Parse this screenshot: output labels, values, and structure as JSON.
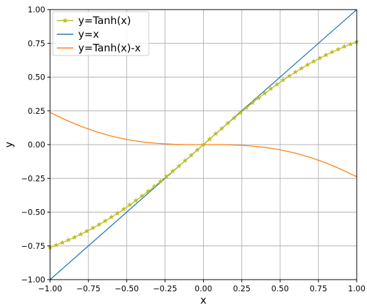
{
  "chart_data": {
    "type": "line",
    "title": "",
    "xlabel": "x",
    "ylabel": "y",
    "xlim": [
      -1.0,
      1.0
    ],
    "ylim": [
      -1.0,
      1.0
    ],
    "grid": true,
    "legend_position": "top-left",
    "xticks": [
      "−1.00",
      "−0.75",
      "−0.50",
      "−0.25",
      "0.00",
      "0.25",
      "0.50",
      "0.75",
      "1.00"
    ],
    "yticks": [
      "−1.00",
      "−0.75",
      "−0.50",
      "−0.25",
      "0.00",
      "0.25",
      "0.50",
      "0.75",
      "1.00"
    ],
    "xtick_values": [
      -1.0,
      -0.75,
      -0.5,
      -0.25,
      0.0,
      0.25,
      0.5,
      0.75,
      1.0
    ],
    "ytick_values": [
      -1.0,
      -0.75,
      -0.5,
      -0.25,
      0.0,
      0.25,
      0.5,
      0.75,
      1.0
    ],
    "series": [
      {
        "name": "y=Tanh(x)",
        "color": "#bcbd22",
        "marker": "star",
        "x": [
          -1.0,
          -0.96,
          -0.92,
          -0.88,
          -0.84,
          -0.8,
          -0.76,
          -0.72,
          -0.68,
          -0.64,
          -0.6,
          -0.56,
          -0.52,
          -0.48,
          -0.44,
          -0.4,
          -0.36,
          -0.32,
          -0.28,
          -0.24,
          -0.2,
          -0.16,
          -0.12,
          -0.08,
          -0.04,
          0.0,
          0.04,
          0.08,
          0.12,
          0.16,
          0.2,
          0.24,
          0.28,
          0.32,
          0.36,
          0.4,
          0.44,
          0.48,
          0.52,
          0.56,
          0.6,
          0.64,
          0.68,
          0.72,
          0.76,
          0.8,
          0.84,
          0.88,
          0.92,
          0.96,
          1.0
        ],
        "y": [
          -0.762,
          -0.744,
          -0.726,
          -0.706,
          -0.686,
          -0.664,
          -0.641,
          -0.617,
          -0.592,
          -0.565,
          -0.537,
          -0.508,
          -0.478,
          -0.446,
          -0.414,
          -0.38,
          -0.345,
          -0.31,
          -0.273,
          -0.235,
          -0.197,
          -0.159,
          -0.119,
          -0.08,
          -0.04,
          0.0,
          0.04,
          0.08,
          0.119,
          0.159,
          0.197,
          0.235,
          0.273,
          0.31,
          0.345,
          0.38,
          0.414,
          0.446,
          0.478,
          0.508,
          0.537,
          0.565,
          0.592,
          0.617,
          0.641,
          0.664,
          0.686,
          0.706,
          0.726,
          0.744,
          0.762
        ]
      },
      {
        "name": "y=x",
        "color": "#1f77b4",
        "marker": "none",
        "x": [
          -1.0,
          1.0
        ],
        "y": [
          -1.0,
          1.0
        ]
      },
      {
        "name": "y=Tanh(x)-x",
        "color": "#ff7f0e",
        "marker": "none",
        "x": [
          -1.0,
          -0.9,
          -0.8,
          -0.7,
          -0.6,
          -0.5,
          -0.4,
          -0.3,
          -0.2,
          -0.1,
          0.0,
          0.1,
          0.2,
          0.3,
          0.4,
          0.5,
          0.6,
          0.7,
          0.8,
          0.9,
          1.0
        ],
        "y": [
          0.238,
          0.184,
          0.136,
          0.096,
          0.063,
          0.038,
          0.02,
          0.009,
          0.003,
          0.0,
          0.0,
          0.0,
          -0.003,
          -0.009,
          -0.02,
          -0.038,
          -0.063,
          -0.096,
          -0.136,
          -0.184,
          -0.238
        ]
      }
    ]
  }
}
